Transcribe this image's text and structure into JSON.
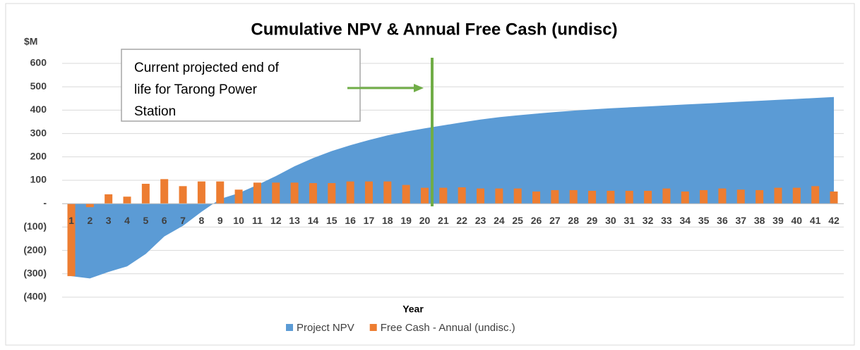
{
  "chart_data": {
    "type": "bar",
    "title": "Cumulative NPV & Annual Free Cash (undisc)",
    "y_label": "$M",
    "x_label": "Year",
    "annotation": {
      "lines": [
        "Current projected end of",
        "life for Tarong Power",
        "Station"
      ]
    },
    "categories": [
      "1",
      "2",
      "3",
      "4",
      "5",
      "6",
      "7",
      "8",
      "9",
      "10",
      "11",
      "12",
      "13",
      "14",
      "15",
      "16",
      "17",
      "18",
      "19",
      "20",
      "21",
      "22",
      "23",
      "24",
      "25",
      "26",
      "27",
      "28",
      "29",
      "30",
      "31",
      "32",
      "33",
      "34",
      "35",
      "36",
      "37",
      "38",
      "39",
      "40",
      "41",
      "42"
    ],
    "series": [
      {
        "name": "Project NPV",
        "type": "area",
        "color": "#5b9bd5",
        "values": [
          -310,
          -320,
          -292,
          -268,
          -215,
          -140,
          -95,
          -35,
          20,
          45,
          80,
          118,
          160,
          195,
          225,
          250,
          272,
          292,
          308,
          322,
          335,
          348,
          360,
          370,
          378,
          385,
          392,
          398,
          403,
          408,
          412,
          416,
          420,
          424,
          428,
          432,
          436,
          440,
          444,
          448,
          452,
          456
        ]
      },
      {
        "name": "Free Cash - Annual (undisc.)",
        "type": "bar",
        "color": "#ed7d31",
        "values": [
          -310,
          -15,
          40,
          30,
          85,
          105,
          75,
          95,
          95,
          60,
          90,
          90,
          90,
          88,
          88,
          95,
          95,
          95,
          80,
          68,
          68,
          70,
          65,
          65,
          65,
          52,
          58,
          58,
          55,
          55,
          55,
          55,
          65,
          52,
          58,
          65,
          60,
          58,
          68,
          68,
          75,
          52
        ]
      }
    ],
    "ylim": [
      -400,
      600
    ],
    "yticks": [
      {
        "value": -400,
        "label": "(400)"
      },
      {
        "value": -300,
        "label": "(300)"
      },
      {
        "value": -200,
        "label": "(200)"
      },
      {
        "value": -100,
        "label": "(100)"
      },
      {
        "value": 0,
        "label": "-"
      },
      100,
      200,
      300,
      400,
      500,
      600
    ]
  }
}
